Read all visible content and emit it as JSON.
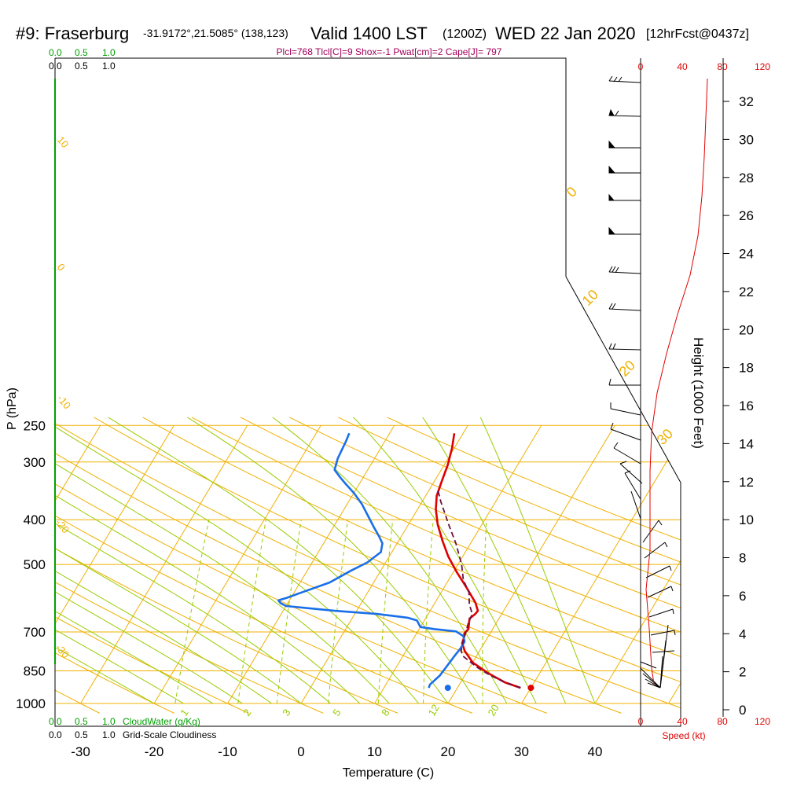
{
  "header": {
    "station": "#9: Fraserburg",
    "coords": "-31.9172°,21.5085° (138,123)",
    "valid": "Valid 1400 LST",
    "zulu": "(1200Z)",
    "date": "WED 22 Jan 2020",
    "forecast": "[12hrFcst@0437z]"
  },
  "params_line": "Plcl=768 Tlcl[C]=9 Shox=-1 Pwat[cm]=2 Cape[J]= 797",
  "top_left_scales": {
    "cloudwater": [
      "0.0",
      "0.5",
      "1.0"
    ],
    "cloudiness": [
      "0.0",
      "0.5",
      "1.0"
    ]
  },
  "bottom_left": {
    "cloudwater_ticks": [
      "0.0",
      "0.5",
      "1.0"
    ],
    "cloudwater_label": "CloudWater (g/Kg)",
    "cloudiness_ticks": [
      "0.0",
      "0.5",
      "1.0"
    ],
    "cloudiness_label": "Grid-Scale Cloudiness"
  },
  "speed_axis": {
    "top_ticks": [
      "0",
      "40",
      "80",
      "120"
    ],
    "bottom_ticks": [
      "0",
      "40",
      "80",
      "120"
    ],
    "label": "Speed (kt)"
  },
  "colors": {
    "isotherm": "#f0b000",
    "dry_adiabat": "#f0b000",
    "moist_adiabat": "#99cc00",
    "mixing_ratio": "#99cc00",
    "temperature": "#e00000",
    "dewpoint": "#1a6fe8",
    "parcel": "#6a1040",
    "cloud_green": "#00a000",
    "speed_red": "#e00000"
  },
  "chart_data": {
    "type": "line",
    "title": "",
    "xlabel": "Temperature (C)",
    "ylabel": "P (hPa)",
    "y2label": "Height (1000 Feet)",
    "y_scale": "log",
    "xlim": [
      -35,
      36
    ],
    "ylim": [
      1000,
      250
    ],
    "x_ticks": [
      -30,
      -20,
      -10,
      0,
      10,
      20,
      30,
      40
    ],
    "p_ticks": [
      250,
      300,
      400,
      500,
      700,
      850,
      1000
    ],
    "height_ticks": [
      0,
      2,
      4,
      6,
      8,
      10,
      12,
      14,
      16,
      18,
      20,
      22,
      24,
      26,
      28,
      30,
      32
    ],
    "mixing_ratio_labels": [
      "1",
      "2",
      "3",
      "5",
      "8",
      "12",
      "20"
    ],
    "dry_adiabat_labels": [
      "10",
      "0",
      "-10",
      "-20",
      "-30"
    ],
    "moist_adiabat_labels": [
      "0",
      "10",
      "20",
      "30"
    ],
    "series": [
      {
        "name": "",
        "kind": "temperature",
        "points": [
          [
            28.6,
            925
          ],
          [
            26,
            900
          ],
          [
            23,
            860
          ],
          [
            20,
            815
          ],
          [
            18,
            770
          ],
          [
            17,
            740
          ],
          [
            16.8,
            720
          ],
          [
            16.5,
            705
          ],
          [
            16.7,
            690
          ],
          [
            16.2,
            665
          ],
          [
            16,
            655
          ],
          [
            16.4,
            640
          ],
          [
            16.5,
            630
          ],
          [
            15.5,
            605
          ],
          [
            13,
            560
          ],
          [
            10.5,
            520
          ],
          [
            8,
            480
          ],
          [
            6,
            445
          ],
          [
            4,
            410
          ],
          [
            2.5,
            380
          ],
          [
            1.5,
            355
          ],
          [
            1,
            330
          ],
          [
            0.5,
            305
          ],
          [
            -0.3,
            280
          ],
          [
            -1.2,
            260
          ]
        ]
      },
      {
        "name": "",
        "kind": "dewpoint",
        "points": [
          [
            16.1,
            925
          ],
          [
            16,
            910
          ],
          [
            16.6,
            870
          ],
          [
            16.8,
            830
          ],
          [
            17,
            790
          ],
          [
            17.2,
            760
          ],
          [
            17.2,
            735
          ],
          [
            16.6,
            715
          ],
          [
            15.2,
            698
          ],
          [
            12,
            690
          ],
          [
            10,
            683
          ],
          [
            9.5,
            672
          ],
          [
            9,
            661
          ],
          [
            7.5,
            652
          ],
          [
            3,
            640
          ],
          [
            -3,
            630
          ],
          [
            -10,
            615
          ],
          [
            -11,
            606
          ],
          [
            -11.5,
            598
          ],
          [
            -10.5,
            590
          ],
          [
            -9,
            575
          ],
          [
            -6,
            547
          ],
          [
            -4,
            515
          ],
          [
            -2.5,
            495
          ],
          [
            -1.5,
            470
          ],
          [
            -2,
            450
          ],
          [
            -3,
            435
          ],
          [
            -4.5,
            415
          ],
          [
            -6,
            395
          ],
          [
            -8,
            370
          ],
          [
            -10,
            350
          ],
          [
            -11.8,
            335
          ],
          [
            -13,
            325
          ],
          [
            -14.5,
            312
          ],
          [
            -15,
            295
          ],
          [
            -15.3,
            270
          ],
          [
            -15.5,
            260
          ]
        ]
      },
      {
        "name": "",
        "kind": "parcel",
        "points": [
          [
            28.6,
            925
          ],
          [
            26.5,
            905
          ],
          [
            23.5,
            870
          ],
          [
            21,
            835
          ],
          [
            18.2,
            790
          ],
          [
            17.5,
            770
          ],
          [
            17,
            735
          ],
          [
            16.6,
            700
          ],
          [
            16.2,
            670
          ],
          [
            16,
            640
          ],
          [
            14.8,
            610
          ],
          [
            13.8,
            575
          ],
          [
            12,
            540
          ],
          [
            10.5,
            500
          ],
          [
            8,
            450
          ],
          [
            5.5,
            410
          ],
          [
            2.5,
            365
          ],
          [
            1.2,
            345
          ]
        ]
      }
    ],
    "surface_markers": {
      "temperature": 30,
      "dewpoint": 18.7,
      "pressure": 925
    }
  }
}
